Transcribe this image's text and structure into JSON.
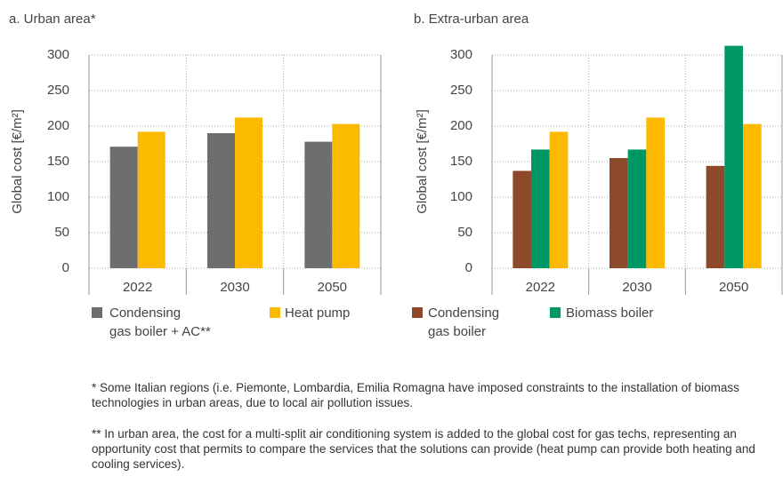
{
  "chart_data": [
    {
      "type": "bar",
      "title": "a. Urban area*",
      "y_label": "Global cost [€/m²]",
      "categories": [
        "2022",
        "2030",
        "2050"
      ],
      "series": [
        {
          "name": "Condensing gas boiler + AC**",
          "color": "#6d6e70",
          "values": [
            171,
            190,
            178
          ]
        },
        {
          "name": "Heat pump",
          "color": "#fbb900",
          "values": [
            192,
            212,
            203
          ]
        }
      ],
      "ylim": [
        0,
        300
      ],
      "yticks": [
        0,
        50,
        100,
        150,
        200,
        250,
        300
      ],
      "grid": true
    },
    {
      "type": "bar",
      "title": "b. Extra-urban area",
      "y_label": "Global cost [€/m²]",
      "categories": [
        "2022",
        "2030",
        "2050"
      ],
      "series": [
        {
          "name": "Condensing gas boiler",
          "color": "#8c4a2a",
          "values": [
            137,
            155,
            144
          ]
        },
        {
          "name": "Biomass boiler",
          "color": "#009767",
          "values": [
            167,
            167,
            313
          ]
        },
        {
          "name": "Heat pump",
          "color": "#fbb900",
          "values": [
            192,
            212,
            203
          ]
        }
      ],
      "ylim": [
        0,
        300
      ],
      "yticks": [
        0,
        50,
        100,
        150,
        200,
        250,
        300
      ],
      "grid": true
    }
  ],
  "notes": [
    "* Some Italian regions (i.e. Piemonte, Lombardia, Emilia Romagna have imposed constraints to the installation of biomass technologies in urban areas, due to local air pollution issues.",
    "** In urban area, the cost for a multi-split air conditioning system is added to the global cost for gas techs, representing an opportunity cost that permits to compare the services that the solutions can provide (heat pump can provide both heating and cooling services)."
  ]
}
